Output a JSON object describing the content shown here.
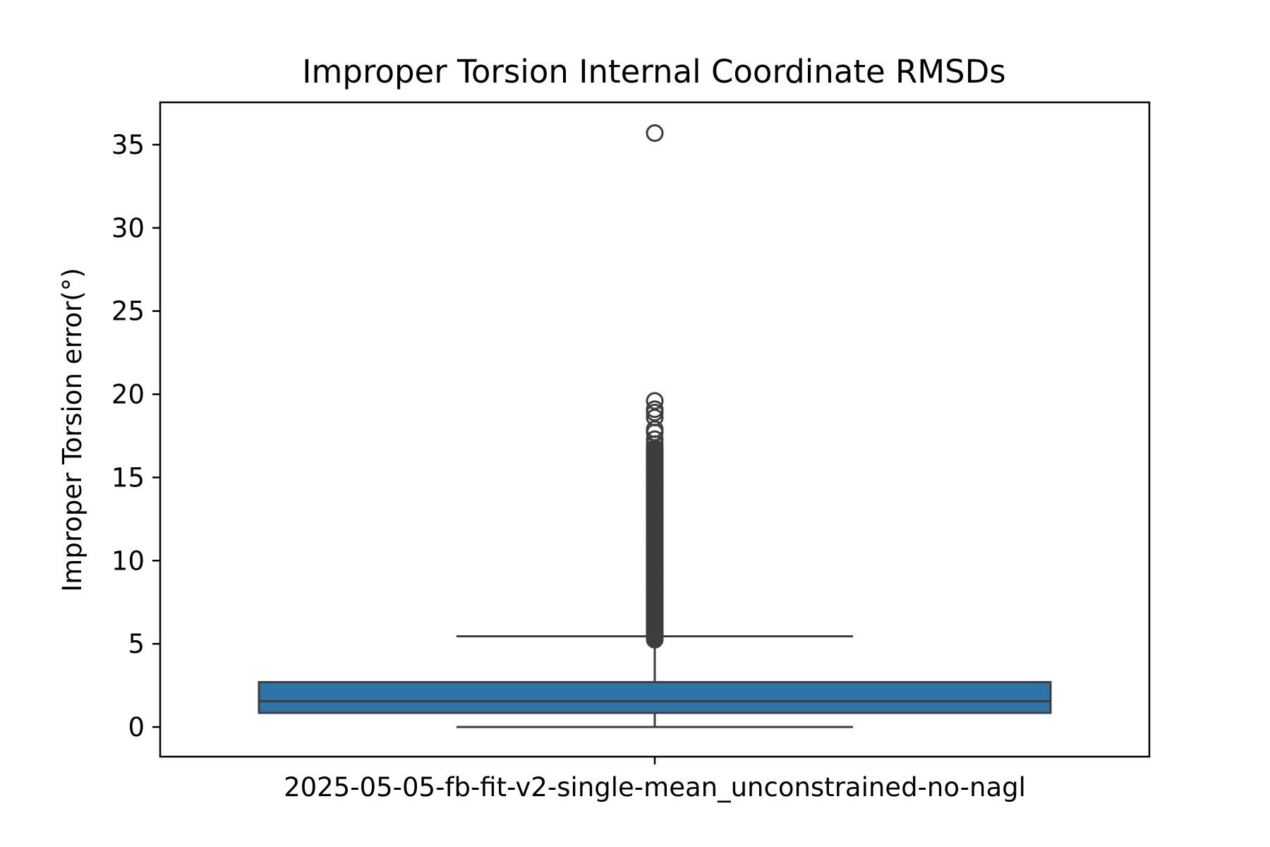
{
  "chart_data": {
    "type": "box",
    "title": "Improper Torsion Internal Coordinate RMSDs",
    "xlabel": "",
    "ylabel": "Improper Torsion error(°)",
    "categories": [
      "2025-05-05-fb-fit-v2-single-mean_unconstrained-no-nagl"
    ],
    "ylim": [
      -1.8,
      37.5
    ],
    "yticks": [
      0,
      5,
      10,
      15,
      20,
      25,
      30,
      35
    ],
    "ytick_labels": [
      "0",
      "5",
      "10",
      "15",
      "20",
      "25",
      "30",
      "35"
    ],
    "grid": false,
    "legend": "none",
    "box": {
      "whisker_low": 0.0,
      "q1": 0.85,
      "median": 1.55,
      "q3": 2.7,
      "whisker_high": 5.45
    },
    "outliers": [
      5.3,
      5.5,
      5.8,
      6.2,
      6.6,
      7.0,
      7.5,
      8.0,
      8.5,
      9.0,
      9.5,
      10.0,
      10.5,
      11.0,
      11.5,
      12.0,
      12.5,
      13.0,
      13.5,
      14.0,
      14.5,
      15.0,
      15.5,
      16.0,
      16.5,
      17.0,
      17.3,
      17.7,
      17.9,
      18.6,
      18.9,
      19.1,
      19.6,
      35.7
    ],
    "colors": {
      "box_fill": "#2f74a6",
      "line": "#3d3d3d",
      "frame": "#000000"
    }
  }
}
